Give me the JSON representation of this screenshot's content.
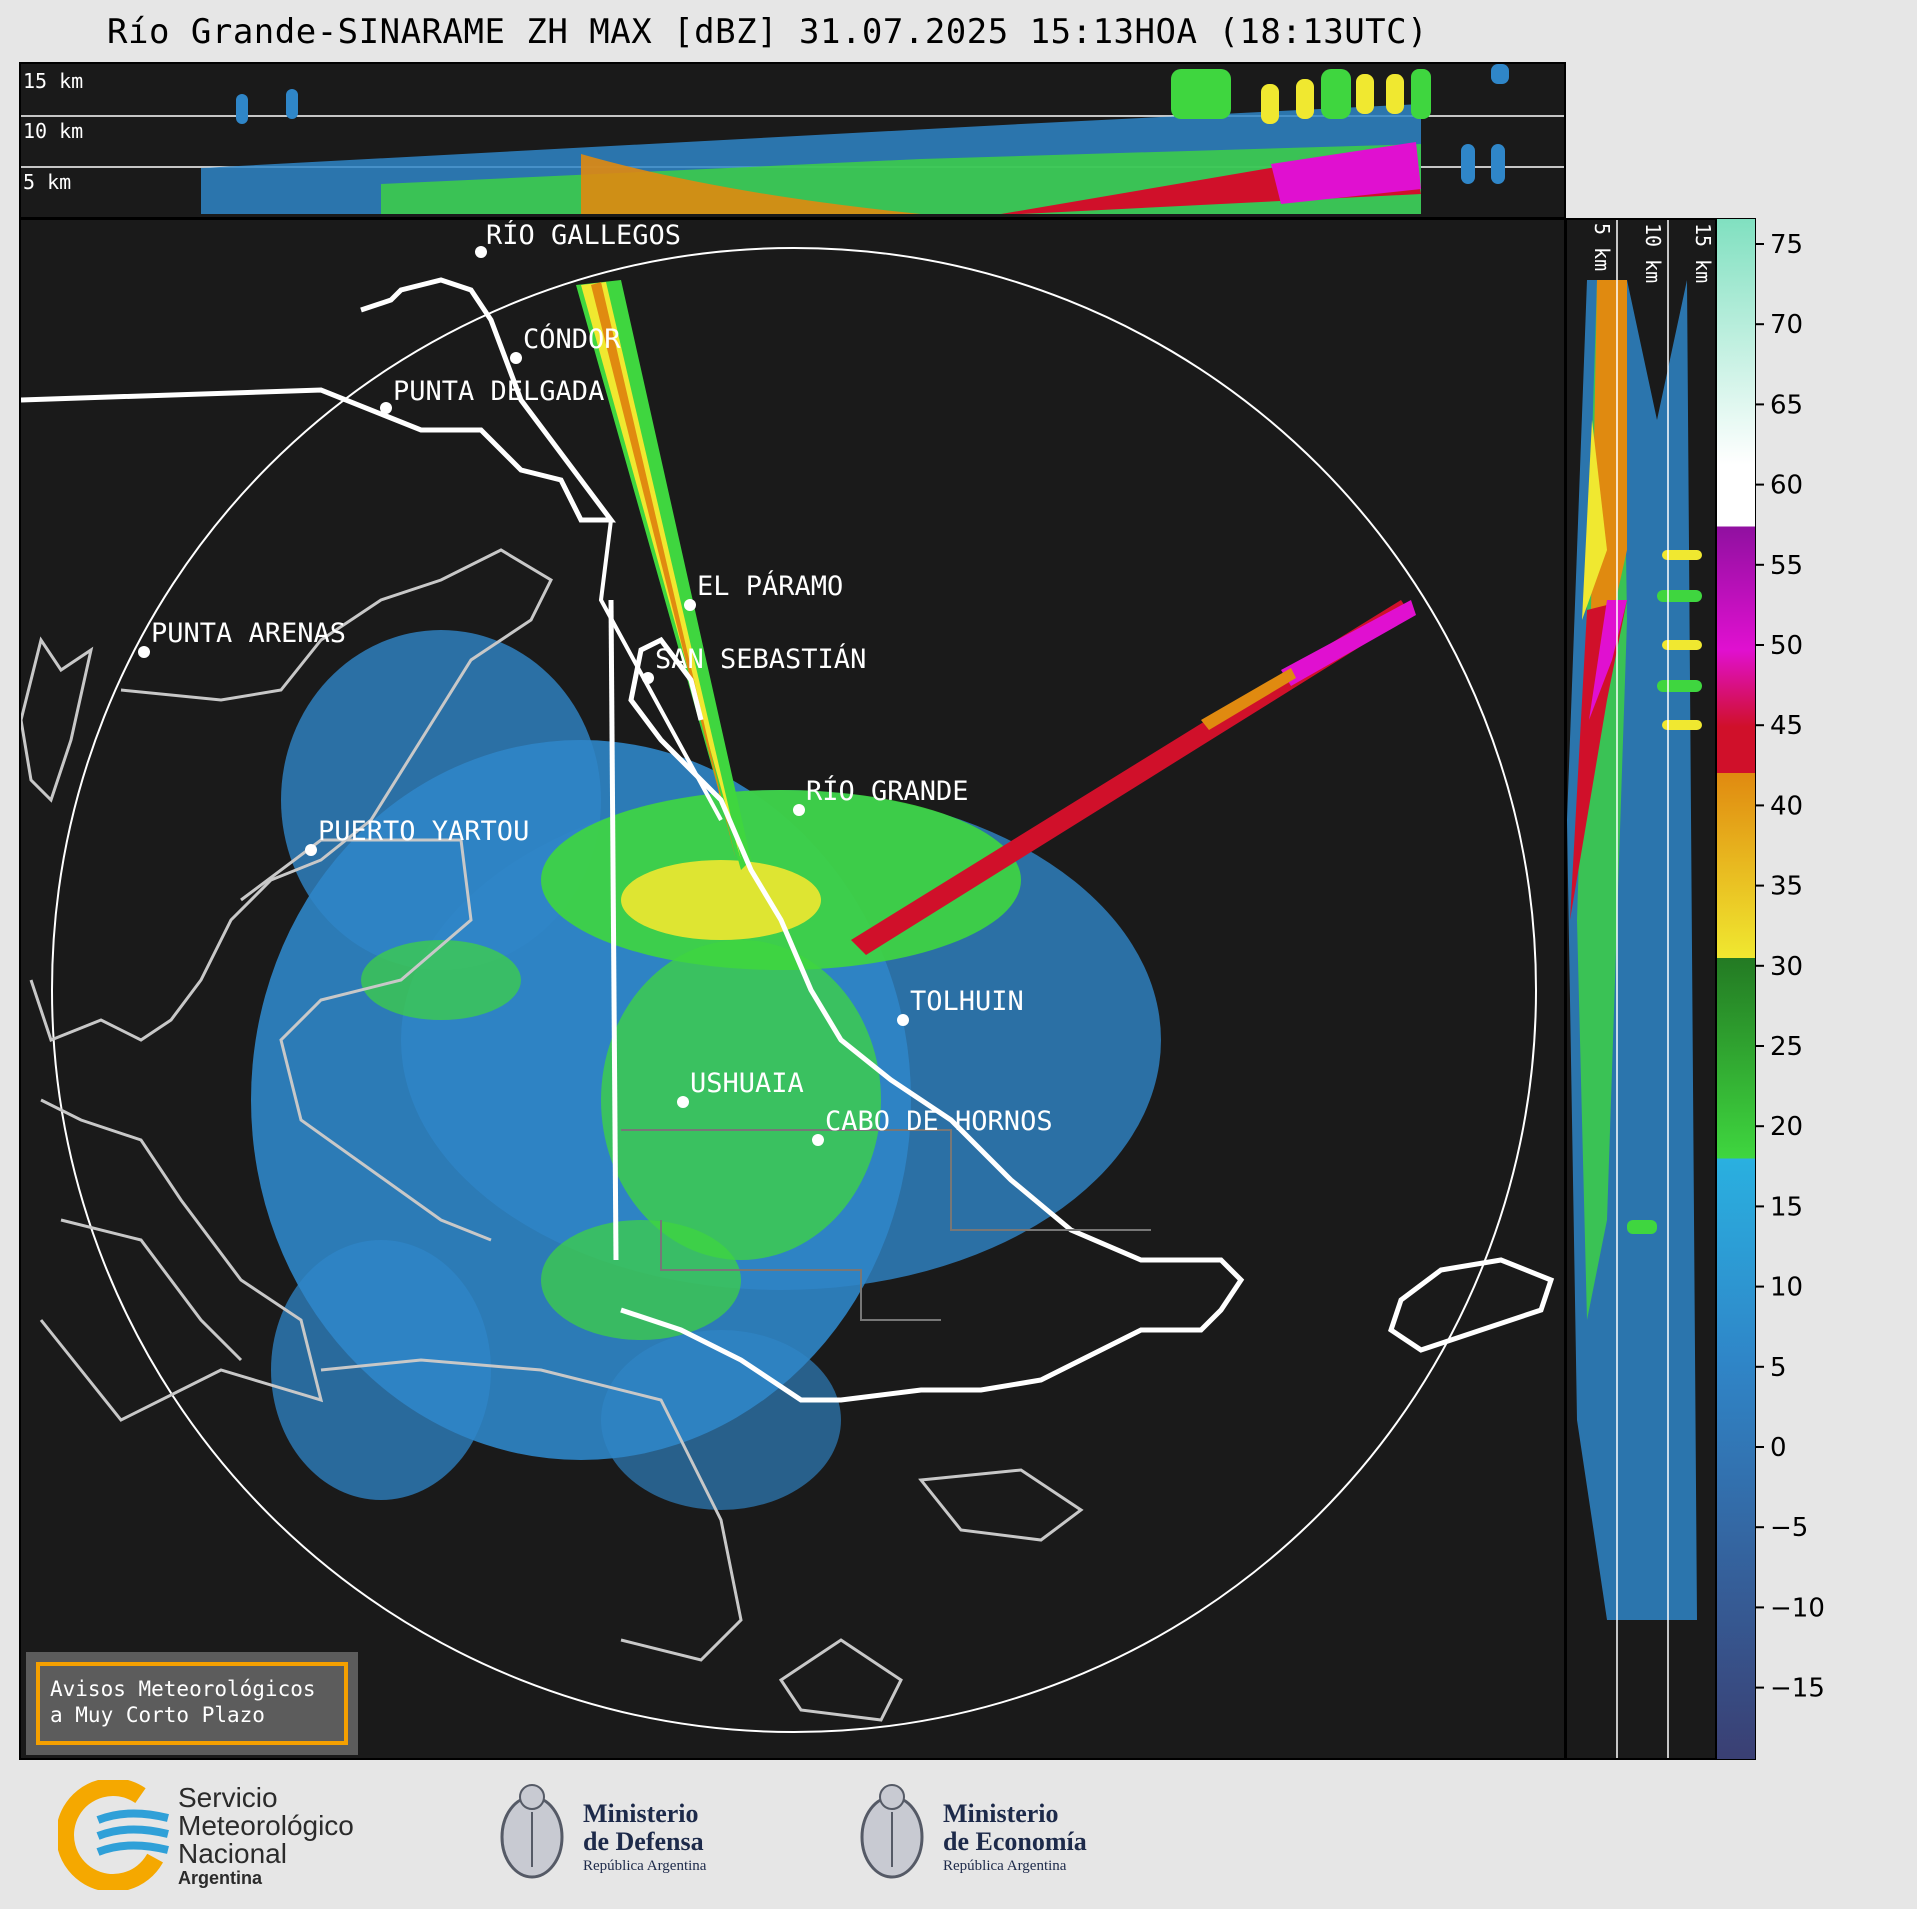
{
  "title": "Río Grande-SINARAME ZH MAX [dBZ] 31.07.2025 15:13HOA (18:13UTC)",
  "top_panel": {
    "height_labels": [
      "15 km",
      "10 km",
      "5 km"
    ]
  },
  "side_panel": {
    "height_labels": [
      "5 km",
      "10 km",
      "15 km"
    ]
  },
  "map": {
    "places": [
      {
        "name": "RÍO GALLEGOS"
      },
      {
        "name": "CÓNDOR"
      },
      {
        "name": "PUNTA DELGADA"
      },
      {
        "name": "EL PÁRAMO"
      },
      {
        "name": "PUNTA ARENAS"
      },
      {
        "name": "SAN SEBASTIÁN"
      },
      {
        "name": "RÍO GRANDE"
      },
      {
        "name": "PUERTO YARTOU"
      },
      {
        "name": "TOLHUIN"
      },
      {
        "name": "USHUAIA"
      },
      {
        "name": "CABO DE HORNOS"
      }
    ]
  },
  "colorbar": {
    "unit": "dBZ",
    "ticks": [
      "75",
      "70",
      "65",
      "60",
      "55",
      "50",
      "45",
      "40",
      "35",
      "30",
      "25",
      "20",
      "15",
      "10",
      "5",
      "0",
      "−5",
      "−10",
      "−15"
    ],
    "colors": {
      "low": "#3a3f73",
      "blue": "#2f86c8",
      "cyan": "#2ab0e0",
      "green": "#3fd63f",
      "dark_green": "#237a23",
      "yellow": "#f0e830",
      "orange": "#e08a10",
      "red": "#d0102a",
      "magenta": "#e010d0",
      "purple": "#9010a0",
      "white": "#ffffff",
      "mint": "#80e0c0"
    }
  },
  "badge": {
    "line1": "Avisos Meteorológicos",
    "line2": "a Muy Corto Plazo",
    "border_color": "#f5a000"
  },
  "footer": {
    "smn": {
      "line1": "Servicio",
      "line2": "Meteorológico",
      "line3": "Nacional",
      "line4": "Argentina"
    },
    "defensa": {
      "line1": "Ministerio",
      "line2": "de Defensa",
      "line3": "República Argentina"
    },
    "economia": {
      "line1": "Ministerio",
      "line2": "de Economía",
      "line3": "República Argentina"
    }
  }
}
